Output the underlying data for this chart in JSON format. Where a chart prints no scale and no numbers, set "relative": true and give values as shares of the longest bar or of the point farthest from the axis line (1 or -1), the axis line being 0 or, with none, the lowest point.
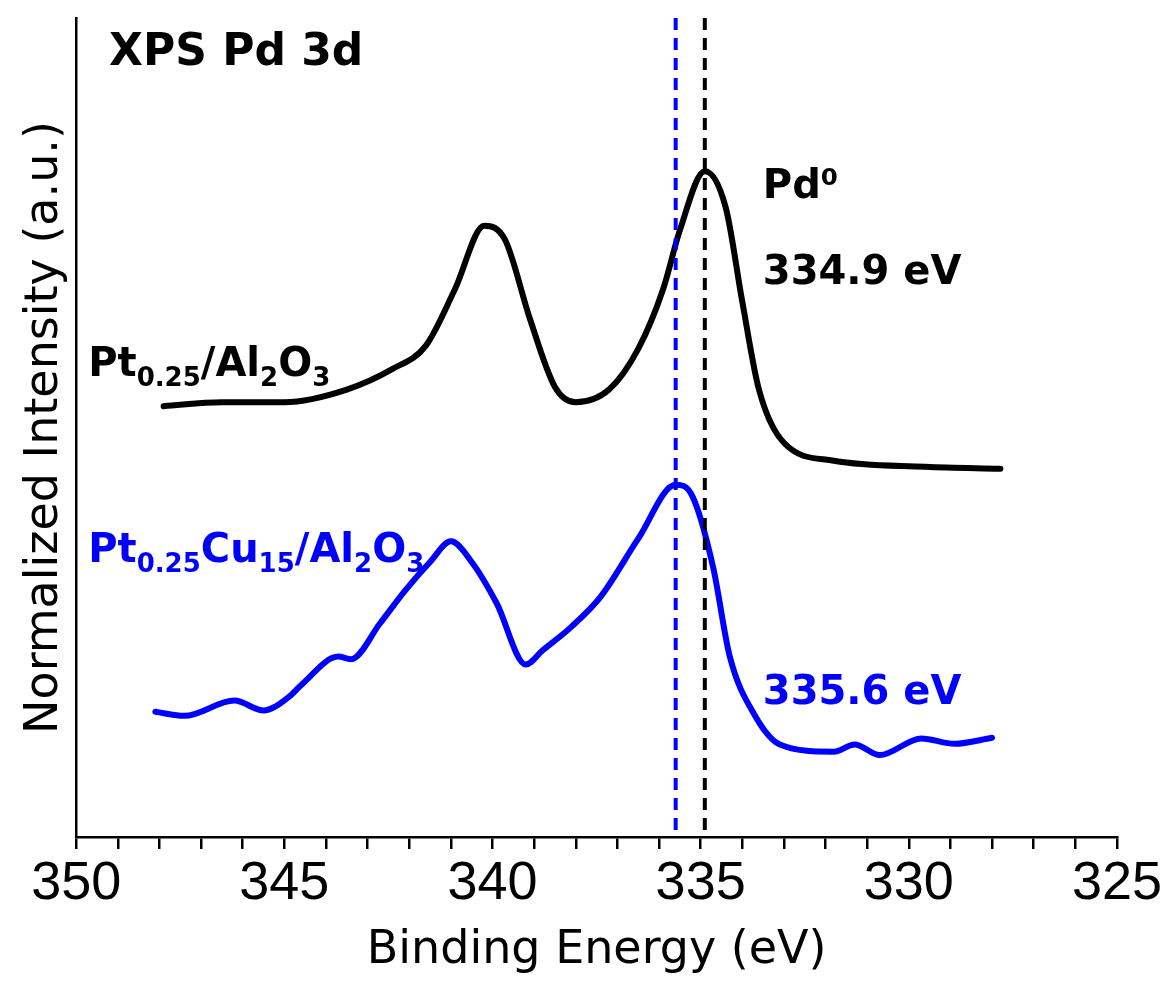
{
  "chart_data": {
    "type": "line",
    "relative": true,
    "xlabel": "Binding Energy (eV)",
    "ylabel": "Normalized Intensity (a.u.)",
    "xlim": [
      350,
      325
    ],
    "xticks": [
      350,
      {
        "value": 349,
        "label": null
      },
      {
        "value": 348,
        "label": null
      },
      {
        "value": 347,
        "label": null
      },
      {
        "value": 346,
        "label": null
      },
      345,
      {
        "value": 344,
        "label": null
      },
      {
        "value": 343,
        "label": null
      },
      {
        "value": 342,
        "label": null
      },
      {
        "value": 341,
        "label": null
      },
      340,
      {
        "value": 339,
        "label": null
      },
      {
        "value": 338,
        "label": null
      },
      {
        "value": 337,
        "label": null
      },
      {
        "value": 336,
        "label": null
      },
      335,
      {
        "value": 334,
        "label": null
      },
      {
        "value": 333,
        "label": null
      },
      {
        "value": 332,
        "label": null
      },
      {
        "value": 331,
        "label": null
      },
      330,
      {
        "value": 329,
        "label": null
      },
      {
        "value": 328,
        "label": null
      },
      {
        "value": 327,
        "label": null
      },
      {
        "value": 326,
        "label": null
      },
      325
    ],
    "tick_labels": "x",
    "grid": false,
    "legend": false,
    "marker": "none",
    "line_style": "solid",
    "series": [
      {
        "name": "Pt$_{0.25}$/Al$_{2}$O$_{3}$",
        "color": "#000000",
        "x": [
          347.9,
          346.5,
          345.0,
          343.5,
          342.4,
          341.6,
          340.9,
          340.2,
          339.7,
          339.1,
          338.5,
          338.0,
          337.2,
          336.5,
          335.9,
          335.5,
          334.9,
          334.4,
          334.0,
          333.6,
          333.0,
          331.8,
          329.6,
          327.8
        ],
        "values": [
          0.647,
          0.653,
          0.653,
          0.672,
          0.703,
          0.738,
          0.823,
          0.918,
          0.897,
          0.778,
          0.676,
          0.653,
          0.672,
          0.733,
          0.823,
          0.911,
          1.0,
          0.946,
          0.804,
          0.672,
          0.592,
          0.565,
          0.556,
          0.553
        ]
      },
      {
        "name": "Pt$_{0.25}$Cu$_{15}$/Al$_{2}$O$_{3}$",
        "color": "#0000ff",
        "x": [
          348.1,
          347.4,
          346.2,
          345.5,
          344.9,
          344.6,
          343.7,
          343.4,
          342.7,
          342.1,
          341.5,
          341.0,
          340.5,
          339.9,
          339.2,
          338.8,
          338.1,
          337.4,
          336.5,
          335.6,
          335.2,
          334.7,
          334.3,
          333.7,
          333.1,
          331.8,
          331.3,
          330.7,
          329.7,
          328.9,
          328.0
        ],
        "values": [
          0.188,
          0.182,
          0.205,
          0.19,
          0.21,
          0.228,
          0.271,
          0.267,
          0.321,
          0.37,
          0.413,
          0.444,
          0.413,
          0.351,
          0.259,
          0.28,
          0.316,
          0.361,
          0.448,
          0.529,
          0.512,
          0.405,
          0.271,
          0.183,
          0.139,
          0.128,
          0.139,
          0.123,
          0.148,
          0.14,
          0.149
        ]
      }
    ],
    "ref_lines": [
      {
        "axis": "x",
        "value": 334.9,
        "label": "334.9 eV",
        "color": "#000000",
        "line_style": "dashed"
      },
      {
        "axis": "x",
        "value": 335.6,
        "label": "335.6 eV",
        "color": "#0000ff",
        "line_style": "dashed"
      }
    ],
    "annotations": [
      "XPS Pd 3d",
      "Pd⁰"
    ]
  }
}
